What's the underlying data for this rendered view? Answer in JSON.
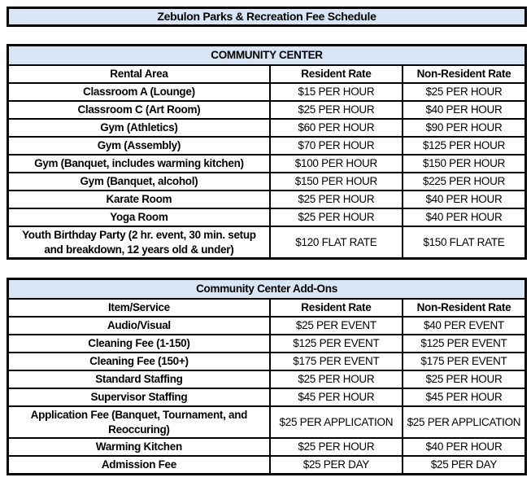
{
  "page_title": "Zebulon Parks & Recreation Fee Schedule",
  "colors": {
    "header_fill": "#D7E5F4",
    "border": "#000000",
    "background": "#FFFFFF",
    "text": "#000000"
  },
  "tables": [
    {
      "type": "table",
      "title": "COMMUNITY CENTER",
      "columns": [
        "Rental Area",
        "Resident Rate",
        "Non-Resident Rate"
      ],
      "rows": [
        [
          "Classroom A (Lounge)",
          "$15 PER HOUR",
          "$25 PER HOUR"
        ],
        [
          "Classroom C (Art Room)",
          "$25 PER HOUR",
          "$40 PER HOUR"
        ],
        [
          "Gym (Athletics)",
          "$60 PER HOUR",
          "$90 PER HOUR"
        ],
        [
          "Gym (Assembly)",
          "$70 PER HOUR",
          "$125 PER HOUR"
        ],
        [
          "Gym (Banquet, includes warming kitchen)",
          "$100 PER HOUR",
          "$150 PER HOUR"
        ],
        [
          "Gym (Banquet, alcohol)",
          "$150 PER HOUR",
          "$225 PER HOUR"
        ],
        [
          "Karate Room",
          "$25 PER HOUR",
          "$40 PER HOUR"
        ],
        [
          "Yoga Room",
          "$25 PER HOUR",
          "$40 PER HOUR"
        ],
        [
          "Youth Birthday Party (2 hr. event, 30 min. setup and breakdown, 12 years old & under)",
          "$120 FLAT RATE",
          "$150 FLAT RATE"
        ]
      ]
    },
    {
      "type": "table",
      "title": "Community Center Add-Ons",
      "columns": [
        "Item/Service",
        "Resident Rate",
        "Non-Resident Rate"
      ],
      "rows": [
        [
          "Audio/Visual",
          "$25 PER EVENT",
          "$40 PER EVENT"
        ],
        [
          "Cleaning Fee (1-150)",
          "$125 PER EVENT",
          "$125 PER EVENT"
        ],
        [
          "Cleaning Fee (150+)",
          "$175 PER EVENT",
          "$175 PER EVENT"
        ],
        [
          "Standard Staffing",
          "$25 PER HOUR",
          "$25 PER HOUR"
        ],
        [
          "Supervisor Staffing",
          "$45 PER HOUR",
          "$45 PER HOUR"
        ],
        [
          "Application Fee (Banquet, Tournament, and Reoccuring)",
          "$25 PER APPLICATION",
          "$25 PER APPLICATION"
        ],
        [
          "Warming Kitchen",
          "$25 PER HOUR",
          "$40 PER HOUR"
        ],
        [
          "Admission Fee",
          "$25 PER DAY",
          "$25 PER DAY"
        ]
      ]
    }
  ]
}
